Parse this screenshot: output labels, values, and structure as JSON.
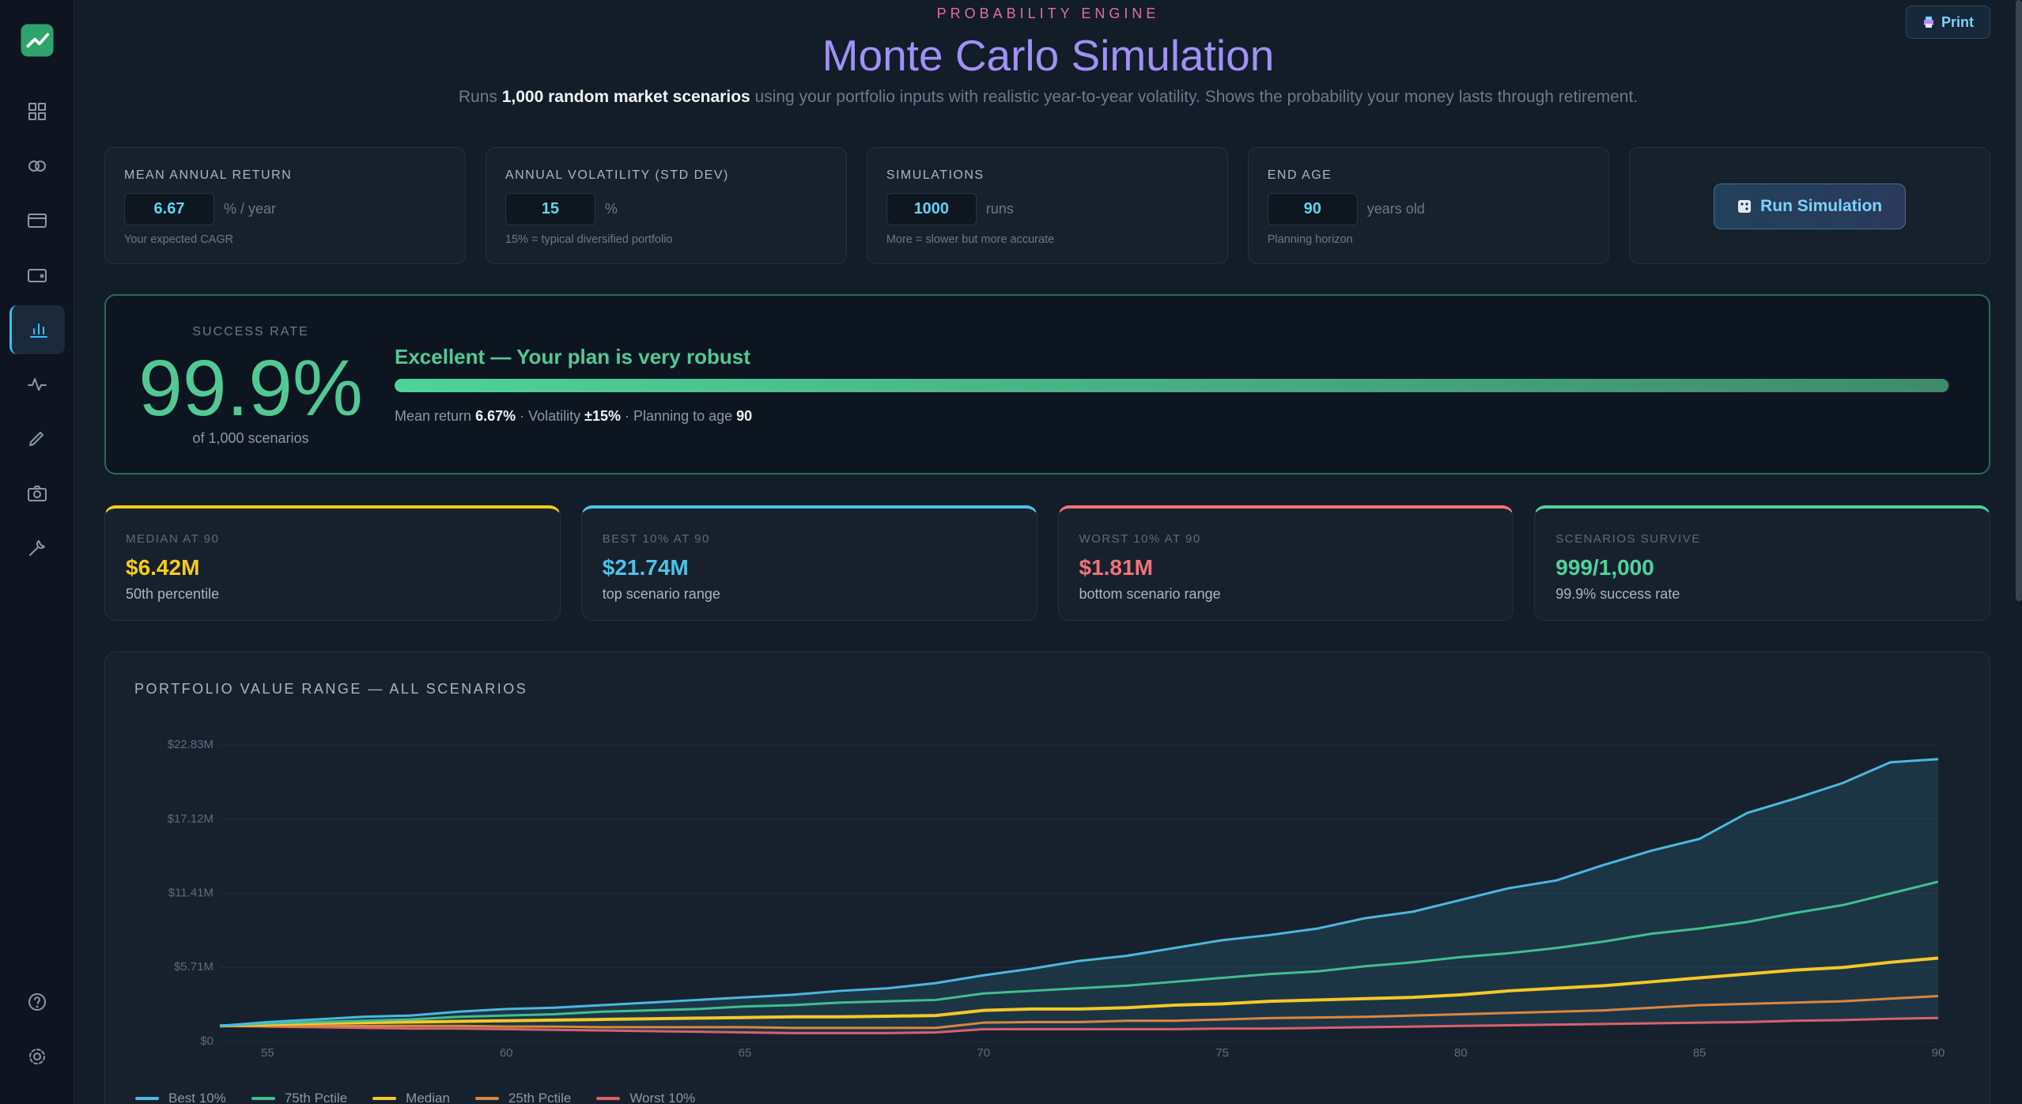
{
  "header": {
    "eyebrow": "PROBABILITY ENGINE",
    "title": "Monte Carlo Simulation",
    "subtitle": {
      "before": "Runs ",
      "bold": "1,000 random market scenarios",
      "after": " using your portfolio inputs with realistic year-to-year volatility. Shows the probability your money lasts through retirement."
    }
  },
  "print_button": "Print",
  "inputs": [
    {
      "label": "MEAN ANNUAL RETURN",
      "value": 6.67,
      "unit": "% / year",
      "hint": "Your expected CAGR"
    },
    {
      "label": "ANNUAL VOLATILITY (STD DEV)",
      "value": 15,
      "unit": "%",
      "hint": "15% = typical diversified portfolio"
    },
    {
      "label": "SIMULATIONS",
      "value": 1000,
      "unit": "runs",
      "hint": "More = slower but more accurate"
    },
    {
      "label": "END AGE",
      "value": 90,
      "unit": "years old",
      "hint": "Planning horizon"
    }
  ],
  "run_button": "Run Simulation",
  "result": {
    "label": "SUCCESS RATE",
    "rate": "99.9%",
    "progress": 99.9,
    "scenarios": "of 1,000 scenarios",
    "verdict": "Excellent — Your plan is very robust",
    "meta": [
      {
        "text": "Mean return ",
        "bold": false
      },
      {
        "text": "6.67%",
        "bold": true
      },
      {
        "text": " · Volatility ",
        "bold": false
      },
      {
        "text": "±15%",
        "bold": true
      },
      {
        "text": " · Planning to age ",
        "bold": false
      },
      {
        "text": "90",
        "bold": true
      }
    ]
  },
  "stats": [
    {
      "label": "MEDIAN AT 90",
      "value": "$6.42M",
      "sub": "50th percentile",
      "color": "#facc15"
    },
    {
      "label": "BEST 10% AT 90",
      "value": "$21.74M",
      "sub": "top scenario range",
      "color": "#4cc3ea"
    },
    {
      "label": "WORST 10% AT 90",
      "value": "$1.81M",
      "sub": "bottom scenario range",
      "color": "#f07474"
    },
    {
      "label": "SCENARIOS SURVIVE",
      "value": "999/1,000",
      "sub": "99.9% success rate",
      "color": "#4fd39a"
    }
  ],
  "chart_data": {
    "type": "line",
    "title": "PORTFOLIO VALUE RANGE — ALL SCENARIOS",
    "x": [
      54,
      55,
      56,
      57,
      58,
      59,
      60,
      61,
      62,
      63,
      64,
      65,
      66,
      67,
      68,
      69,
      70,
      71,
      72,
      73,
      74,
      75,
      76,
      77,
      78,
      79,
      80,
      81,
      82,
      83,
      84,
      85,
      86,
      87,
      88,
      89,
      90
    ],
    "xlim": [
      54,
      90
    ],
    "xticks": [
      55,
      60,
      65,
      70,
      75,
      80,
      85,
      90
    ],
    "ylim": [
      0,
      22.83
    ],
    "yticks": [
      {
        "value": 0,
        "label": "$0"
      },
      {
        "value": 5.71,
        "label": "$5.71M"
      },
      {
        "value": 11.41,
        "label": "$11.41M"
      },
      {
        "value": 17.12,
        "label": "$17.12M"
      },
      {
        "value": 22.83,
        "label": "$22.83M"
      }
    ],
    "grid": true,
    "series": [
      {
        "name": "Best 10%",
        "color": "#4cb8dc",
        "values": [
          1.2,
          1.5,
          1.7,
          1.9,
          2.0,
          2.3,
          2.5,
          2.6,
          2.8,
          3.0,
          3.2,
          3.4,
          3.6,
          3.9,
          4.1,
          4.5,
          5.1,
          5.6,
          6.2,
          6.6,
          7.2,
          7.8,
          8.2,
          8.7,
          9.5,
          10.0,
          10.9,
          11.8,
          12.4,
          13.6,
          14.7,
          15.6,
          17.6,
          18.7,
          19.9,
          21.5,
          21.74
        ]
      },
      {
        "name": "75th Pctile",
        "color": "#3fbf8f",
        "values": [
          1.2,
          1.4,
          1.5,
          1.6,
          1.7,
          1.9,
          2.0,
          2.1,
          2.3,
          2.4,
          2.5,
          2.7,
          2.8,
          3.0,
          3.1,
          3.2,
          3.7,
          3.9,
          4.1,
          4.3,
          4.6,
          4.9,
          5.2,
          5.4,
          5.8,
          6.1,
          6.5,
          6.8,
          7.2,
          7.7,
          8.3,
          8.7,
          9.2,
          9.9,
          10.5,
          11.4,
          12.3
        ]
      },
      {
        "name": "Median",
        "color": "#f5c827",
        "values": [
          1.2,
          1.3,
          1.4,
          1.45,
          1.5,
          1.55,
          1.6,
          1.65,
          1.7,
          1.75,
          1.8,
          1.85,
          1.9,
          1.9,
          1.95,
          2.0,
          2.4,
          2.5,
          2.5,
          2.6,
          2.8,
          2.9,
          3.1,
          3.2,
          3.3,
          3.4,
          3.6,
          3.9,
          4.1,
          4.3,
          4.6,
          4.9,
          5.2,
          5.5,
          5.7,
          6.1,
          6.42
        ]
      },
      {
        "name": "25th Pctile",
        "color": "#d9873f",
        "values": [
          1.2,
          1.2,
          1.2,
          1.2,
          1.2,
          1.2,
          1.15,
          1.15,
          1.1,
          1.1,
          1.1,
          1.1,
          1.05,
          1.05,
          1.05,
          1.05,
          1.45,
          1.5,
          1.5,
          1.6,
          1.6,
          1.7,
          1.8,
          1.85,
          1.9,
          2.0,
          2.1,
          2.2,
          2.3,
          2.4,
          2.6,
          2.8,
          2.9,
          3.0,
          3.1,
          3.3,
          3.5
        ]
      },
      {
        "name": "Worst 10%",
        "color": "#d9606e",
        "values": [
          1.2,
          1.15,
          1.1,
          1.05,
          1.0,
          1.0,
          0.95,
          0.9,
          0.85,
          0.8,
          0.75,
          0.7,
          0.65,
          0.65,
          0.65,
          0.7,
          0.95,
          0.95,
          0.95,
          0.95,
          0.95,
          1.0,
          1.0,
          1.05,
          1.1,
          1.15,
          1.2,
          1.25,
          1.3,
          1.35,
          1.4,
          1.45,
          1.5,
          1.6,
          1.65,
          1.75,
          1.81
        ]
      }
    ]
  }
}
